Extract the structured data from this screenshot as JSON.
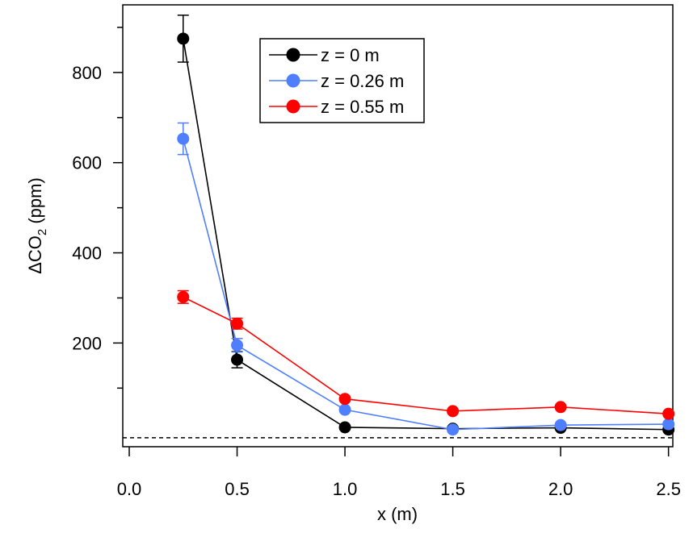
{
  "chart_data": {
    "type": "scatter",
    "xlabel": "x (m)",
    "ylabel": "ΔCO2 (ppm)",
    "xlim": [
      -0.03,
      2.52
    ],
    "ylim": [
      -30,
      950
    ],
    "xticks": [
      0.0,
      0.5,
      1.0,
      1.5,
      2.0,
      2.5
    ],
    "xtick_labels": [
      "0.0",
      "0.5",
      "1.0",
      "1.5",
      "2.0",
      "2.5"
    ],
    "yticks": [
      200,
      400,
      600,
      800
    ],
    "ytick_labels": [
      "200",
      "400",
      "600",
      "800"
    ],
    "reference_line": {
      "y": -10,
      "style": "dashed",
      "color": "#000000"
    },
    "legend_position": "top-center",
    "grid": false,
    "series": [
      {
        "name": "z = 0 m",
        "color": "#000000",
        "x": [
          0.25,
          0.5,
          1.0,
          1.5,
          2.0,
          2.5
        ],
        "y": [
          875,
          163,
          13,
          10,
          12,
          8
        ],
        "err": [
          52,
          18,
          4,
          3,
          3,
          3
        ]
      },
      {
        "name": "z = 0.26 m",
        "color": "#4f7fff",
        "x": [
          0.25,
          0.5,
          1.0,
          1.5,
          2.0,
          2.5
        ],
        "y": [
          653,
          195,
          52,
          8,
          18,
          20
        ],
        "err": [
          35,
          15,
          4,
          3,
          3,
          3
        ]
      },
      {
        "name": "z = 0.55 m",
        "color": "#ff0000",
        "x": [
          0.25,
          0.5,
          1.0,
          1.5,
          2.0,
          2.5
        ],
        "y": [
          302,
          243,
          76,
          49,
          58,
          43
        ],
        "err": [
          14,
          12,
          4,
          3,
          3,
          3
        ]
      }
    ]
  }
}
